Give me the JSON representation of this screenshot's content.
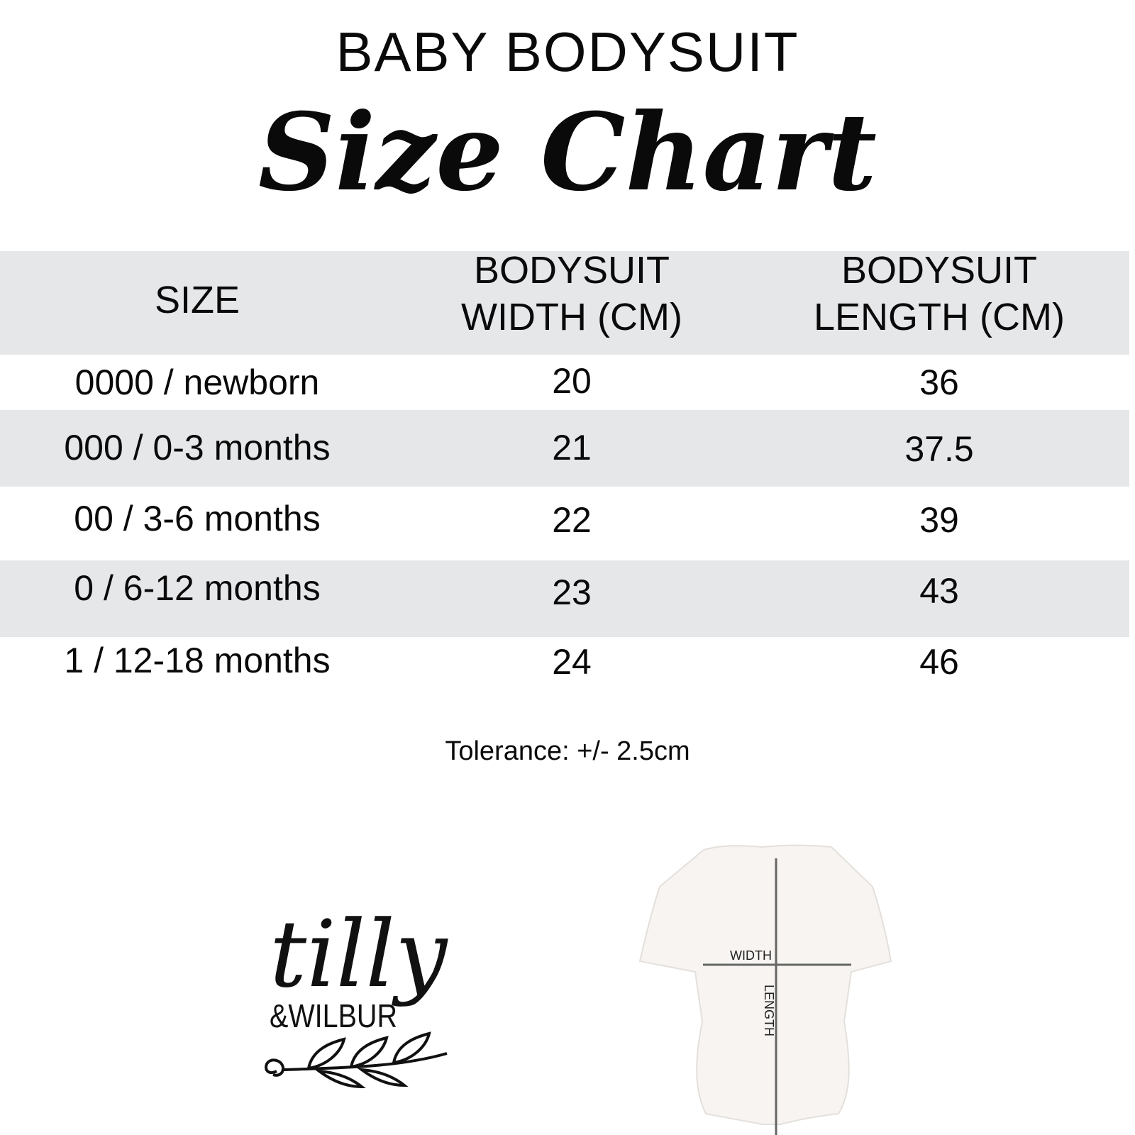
{
  "title": "BABY BODYSUIT",
  "subtitle": "Size Chart",
  "colors": {
    "band": "#e6e7e9",
    "text": "#0a0a0a"
  },
  "table": {
    "headers": [
      "SIZE",
      "BODYSUIT WIDTH (CM)",
      "BODYSUIT LENGTH (CM)"
    ],
    "header_lines": {
      "width1": "BODYSUIT",
      "width2": "WIDTH (CM)",
      "length1": "BODYSUIT",
      "length2": "LENGTH (CM)"
    },
    "rows": [
      {
        "size": "0000 / newborn",
        "width": "20",
        "length": "36"
      },
      {
        "size": "000 / 0-3 months",
        "width": "21",
        "length": "37.5"
      },
      {
        "size": "00 / 3-6 months",
        "width": "22",
        "length": "39"
      },
      {
        "size": "0 / 6-12 months",
        "width": "23",
        "length": "43"
      },
      {
        "size": "1 / 12-18 months",
        "width": "24",
        "length": "46"
      }
    ]
  },
  "tolerance": "Tolerance: +/- 2.5cm",
  "logo": {
    "line1": "tilly",
    "line2": "&WILBUR"
  },
  "diagram": {
    "width_label": "WIDTH",
    "length_label": "LENGTH"
  }
}
